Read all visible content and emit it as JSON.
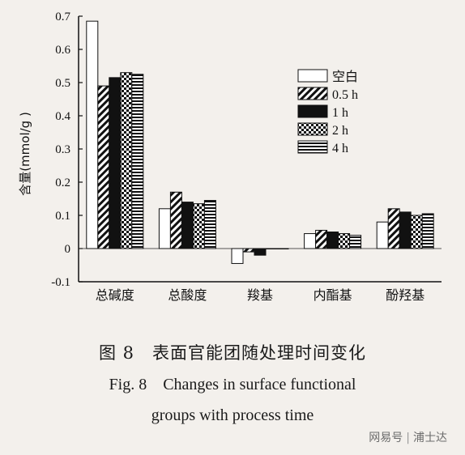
{
  "chart_data": {
    "type": "bar",
    "ylabel": "含量(mmol/g )",
    "ylim": [
      -0.1,
      0.7
    ],
    "yticks": [
      -0.1,
      0,
      0.1,
      0.2,
      0.3,
      0.4,
      0.5,
      0.6,
      0.7
    ],
    "categories": [
      "总碱度",
      "总酸度",
      "羧基",
      "内酯基",
      "酚羟基"
    ],
    "series": [
      {
        "name": "空白",
        "pattern": "white",
        "values": [
          0.685,
          0.12,
          -0.045,
          0.045,
          0.08
        ]
      },
      {
        "name": "0.5 h",
        "pattern": "diag",
        "values": [
          0.49,
          0.17,
          -0.01,
          0.055,
          0.12
        ]
      },
      {
        "name": "1 h",
        "pattern": "black",
        "values": [
          0.515,
          0.14,
          -0.02,
          0.05,
          0.11
        ]
      },
      {
        "name": "2 h",
        "pattern": "check",
        "values": [
          0.53,
          0.135,
          0.0,
          0.045,
          0.1
        ]
      },
      {
        "name": "4 h",
        "pattern": "hstripe",
        "values": [
          0.525,
          0.145,
          0.0,
          0.04,
          0.105
        ]
      }
    ],
    "legend_position": "top-right",
    "grid": false
  },
  "caption": {
    "cn": "图 8　表面官能团随处理时间变化",
    "en_line1": "Fig. 8　Changes in surface functional",
    "en_line2": "groups with process time"
  },
  "watermark": {
    "left": "网易号",
    "separator": "|",
    "right": "浦士达"
  }
}
